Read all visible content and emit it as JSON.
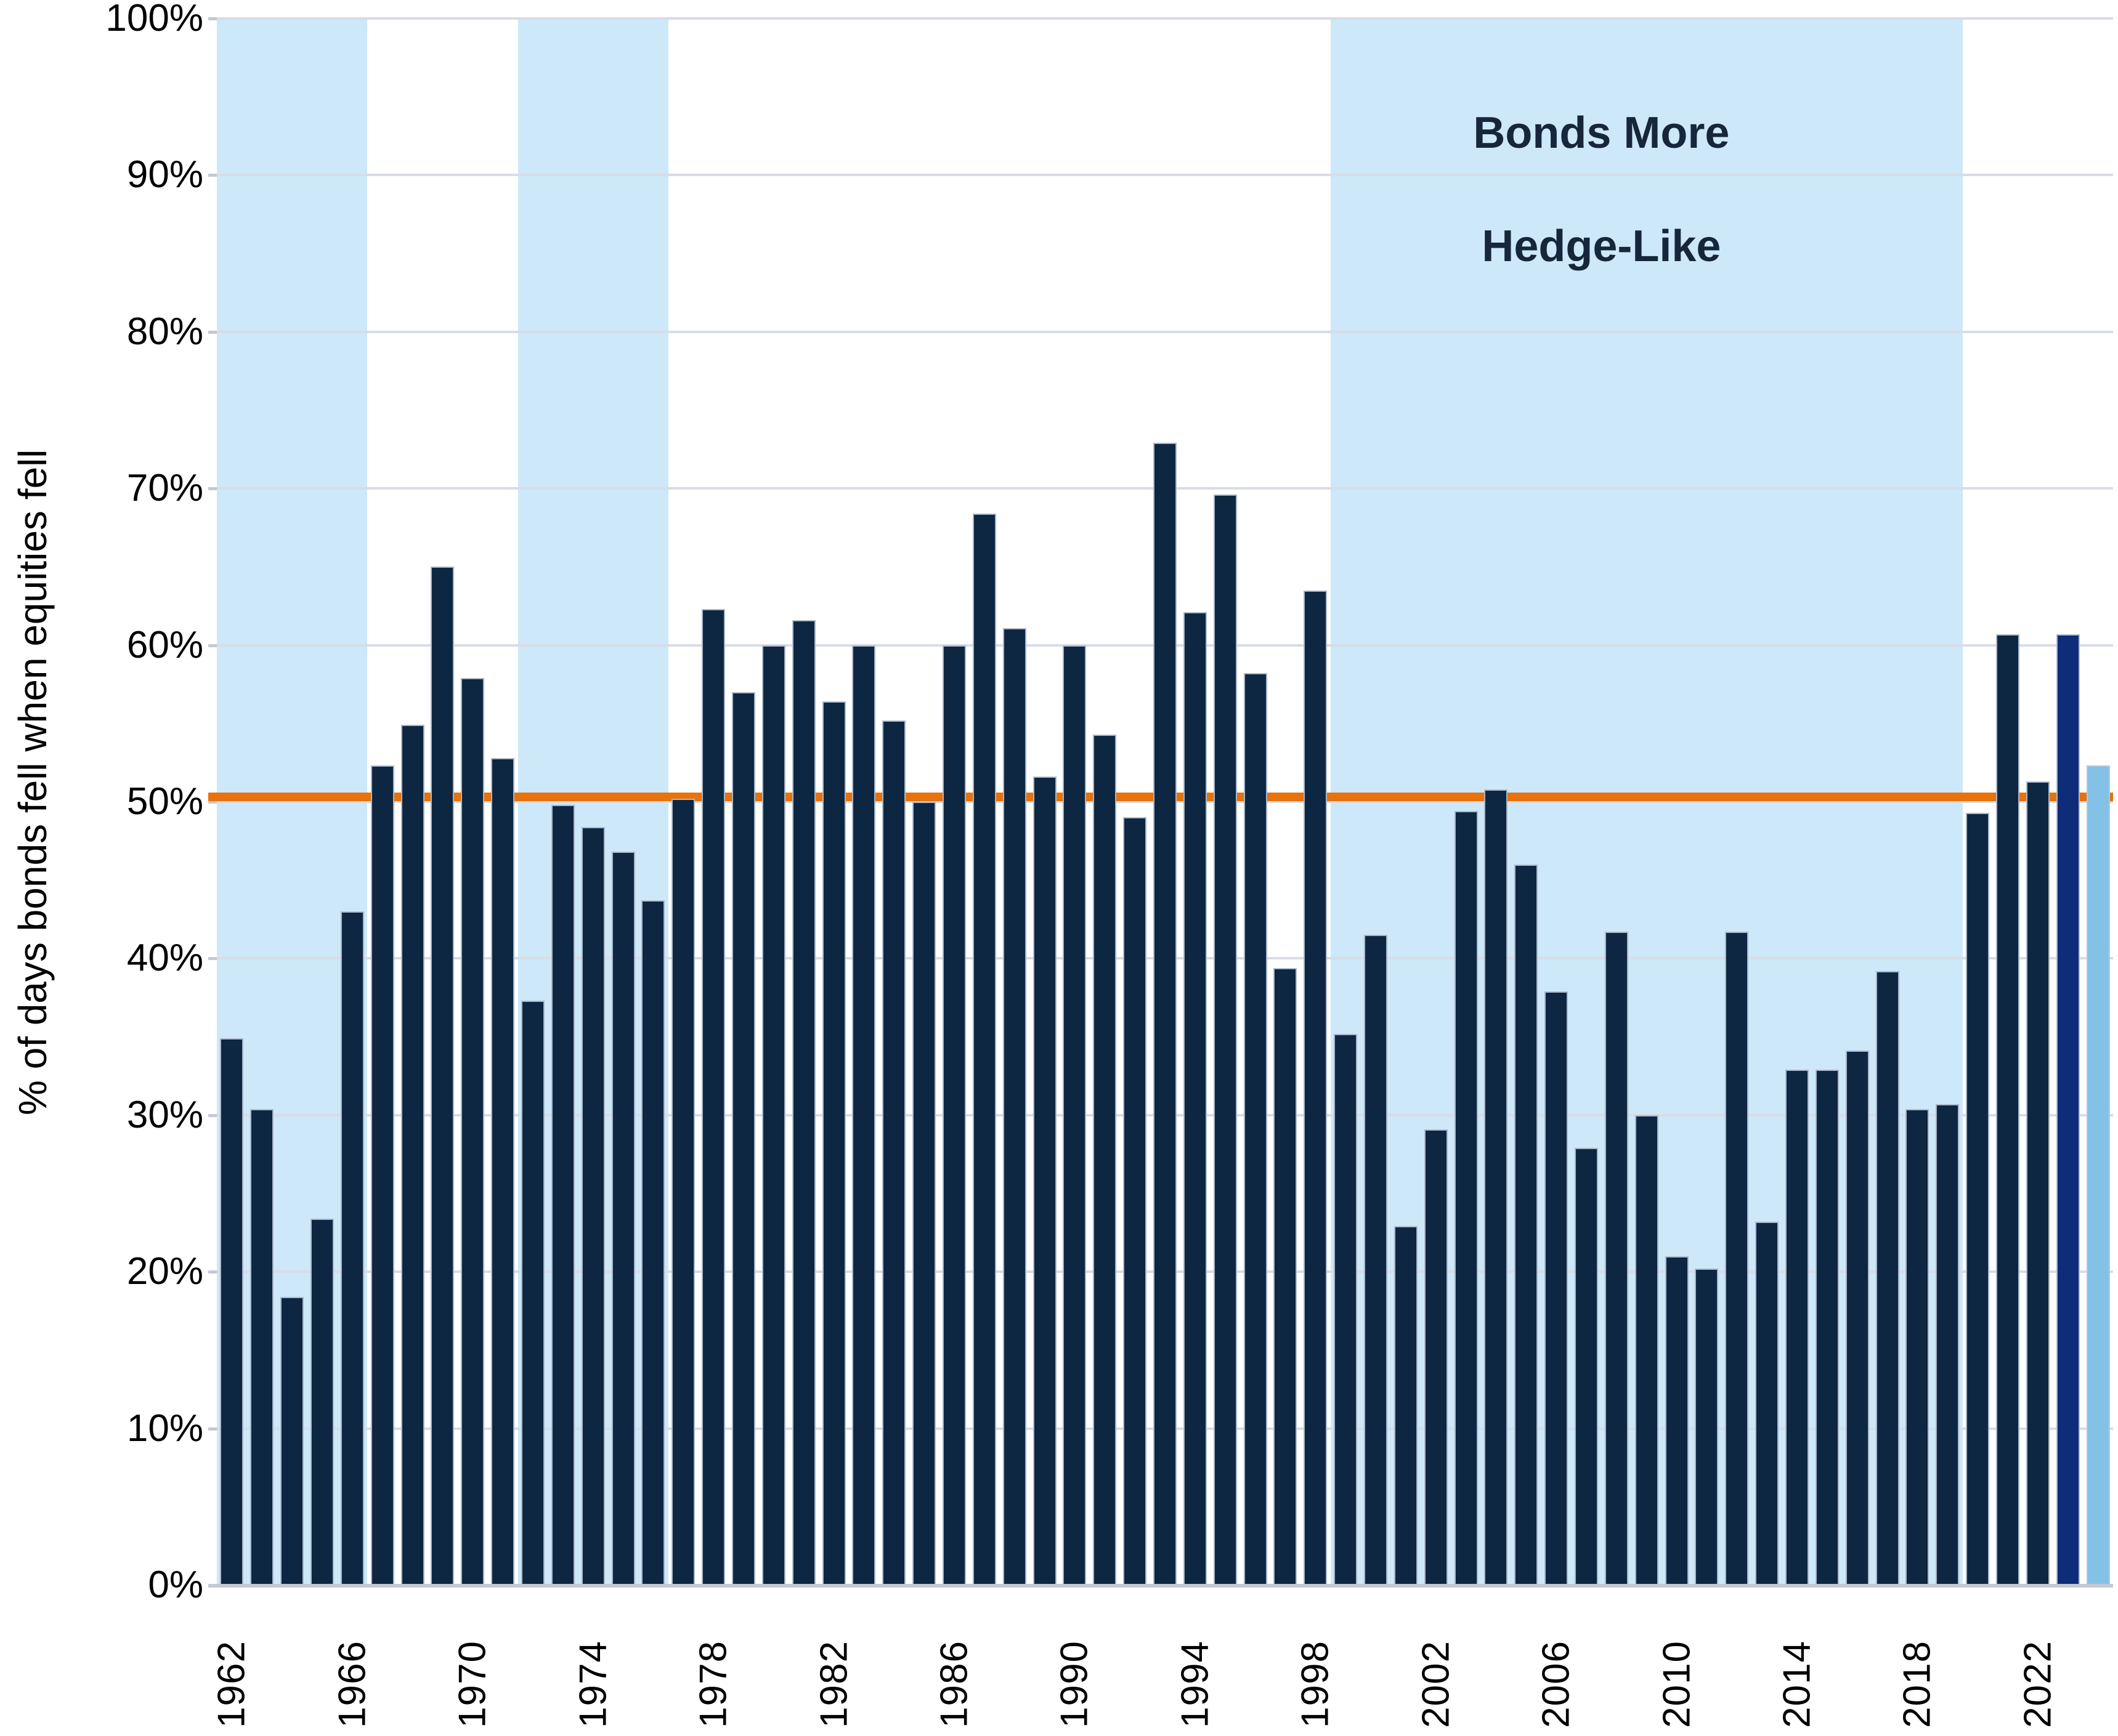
{
  "chart_data": {
    "type": "bar",
    "ylabel": "% of days bonds fell when equities fell",
    "annotation": {
      "line1": "Bonds More",
      "line2": "Hedge-Like"
    },
    "y_ticks": [
      "0%",
      "10%",
      "20%",
      "30%",
      "40%",
      "50%",
      "60%",
      "70%",
      "80%",
      "90%",
      "100%"
    ],
    "x_tick_years": [
      1962,
      1966,
      1970,
      1974,
      1978,
      1982,
      1986,
      1990,
      1994,
      1998,
      2002,
      2006,
      2010,
      2014,
      2018,
      2022
    ],
    "years": [
      1962,
      1963,
      1964,
      1965,
      1966,
      1967,
      1968,
      1969,
      1970,
      1971,
      1972,
      1973,
      1974,
      1975,
      1976,
      1977,
      1978,
      1979,
      1980,
      1981,
      1982,
      1983,
      1984,
      1985,
      1986,
      1987,
      1988,
      1989,
      1990,
      1991,
      1992,
      1993,
      1994,
      1995,
      1996,
      1997,
      1998,
      1999,
      2000,
      2001,
      2002,
      2003,
      2004,
      2005,
      2006,
      2007,
      2008,
      2009,
      2010,
      2011,
      2012,
      2013,
      2014,
      2015,
      2016,
      2017,
      2018,
      2019,
      2020,
      2021,
      2022,
      2023,
      2024
    ],
    "values": [
      34.9,
      30.4,
      18.4,
      23.4,
      43.0,
      52.3,
      54.9,
      65.0,
      57.9,
      52.8,
      37.3,
      49.8,
      48.4,
      46.8,
      43.7,
      50.2,
      62.3,
      57.0,
      60.0,
      61.6,
      56.4,
      60.0,
      55.2,
      50.0,
      60.0,
      68.4,
      61.1,
      51.6,
      60.0,
      54.3,
      49.0,
      72.9,
      62.1,
      69.6,
      58.2,
      39.4,
      63.5,
      35.2,
      41.5,
      22.9,
      29.1,
      49.4,
      50.8,
      46.0,
      37.9,
      27.9,
      41.7,
      30.0,
      21.0,
      20.2,
      41.7,
      23.2,
      32.9,
      32.9,
      34.1,
      39.2,
      30.4,
      30.7,
      49.3,
      60.7,
      51.3,
      60.7,
      52.3
    ],
    "ylim": [
      0,
      100
    ],
    "grid": true,
    "reference_line": {
      "value": 50.3,
      "color": "#e8720c"
    },
    "shaded_bands": [
      {
        "from": 1962,
        "to": 1966
      },
      {
        "from": 1972,
        "to": 1976
      },
      {
        "from": 1999,
        "to": 2019
      }
    ],
    "special_bar_colors": {
      "2023": "#0e2c78",
      "2024": "#84c1e6"
    },
    "colors": {
      "bar": "#0d2742",
      "band": "#cde8f8",
      "gridline": "#d8dce6",
      "axis": "#c4c9d4",
      "reference": "#e8720c"
    }
  }
}
